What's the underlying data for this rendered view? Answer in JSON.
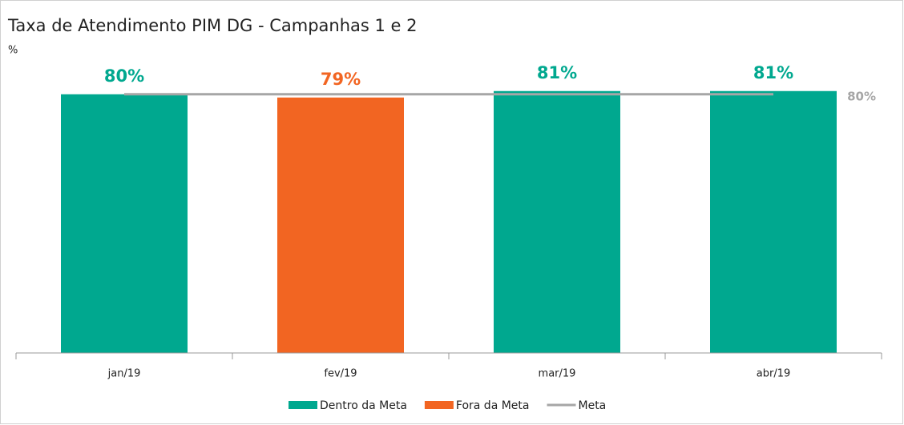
{
  "chart_data": {
    "type": "bar",
    "title": "Taxa de Atendimento PIM DG - Campanhas 1 e 2",
    "y_label": "%",
    "categories": [
      "jan/19",
      "fev/19",
      "mar/19",
      "abr/19"
    ],
    "series": [
      {
        "name": "Dentro da Meta",
        "color": "#00a88f",
        "values": [
          80,
          null,
          81,
          81
        ],
        "value_labels": [
          "80%",
          null,
          "81%",
          "81%"
        ]
      },
      {
        "name": "Fora da Meta",
        "color": "#f26522",
        "values": [
          null,
          79,
          null,
          null
        ],
        "value_labels": [
          null,
          "79%",
          null,
          null
        ]
      },
      {
        "name": "Meta",
        "type": "line",
        "color": "#a6a6a6",
        "values": [
          80,
          80,
          80,
          80
        ],
        "value_labels": [
          null,
          null,
          null,
          "80%"
        ]
      }
    ],
    "ylim": [
      0,
      100
    ],
    "legend": "bottom"
  }
}
